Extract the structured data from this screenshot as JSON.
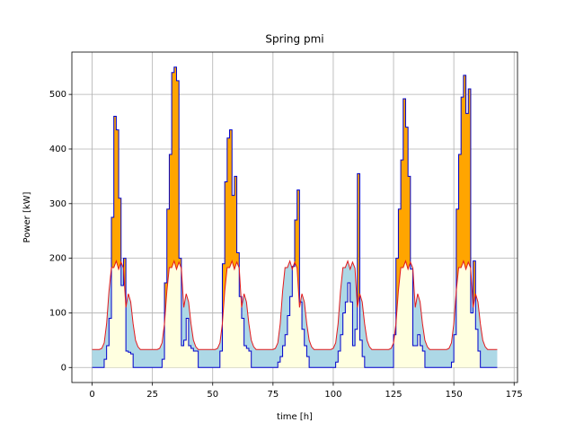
{
  "chart_data": {
    "type": "step_fill",
    "title": "Spring pmi",
    "x_label": "time [h]",
    "y_label": "Power [kW]",
    "x": [
      0,
      1,
      2,
      3,
      4,
      5,
      6,
      7,
      8,
      9,
      10,
      11,
      12,
      13,
      14,
      15,
      16,
      17,
      18,
      19,
      20,
      21,
      22,
      23,
      24,
      25,
      26,
      27,
      28,
      29,
      30,
      31,
      32,
      33,
      34,
      35,
      36,
      37,
      38,
      39,
      40,
      41,
      42,
      43,
      44,
      45,
      46,
      47,
      48,
      49,
      50,
      51,
      52,
      53,
      54,
      55,
      56,
      57,
      58,
      59,
      60,
      61,
      62,
      63,
      64,
      65,
      66,
      67,
      68,
      69,
      70,
      71,
      72,
      73,
      74,
      75,
      76,
      77,
      78,
      79,
      80,
      81,
      82,
      83,
      84,
      85,
      86,
      87,
      88,
      89,
      90,
      91,
      92,
      93,
      94,
      95,
      96,
      97,
      98,
      99,
      100,
      101,
      102,
      103,
      104,
      105,
      106,
      107,
      108,
      109,
      110,
      111,
      112,
      113,
      114,
      115,
      116,
      117,
      118,
      119,
      120,
      121,
      122,
      123,
      124,
      125,
      126,
      127,
      128,
      129,
      130,
      131,
      132,
      133,
      134,
      135,
      136,
      137,
      138,
      139,
      140,
      141,
      142,
      143,
      144,
      145,
      146,
      147,
      148,
      149,
      150,
      151,
      152,
      153,
      154,
      155,
      156,
      157,
      158,
      159,
      160,
      161,
      162,
      163,
      164,
      165,
      166,
      167,
      168
    ],
    "series": [
      {
        "color": "#0000cd",
        "step": "post",
        "fill_above": "#ffa500",
        "fill_below": "#ffffe0",
        "values": [
          0,
          0,
          0,
          0,
          0,
          15,
          40,
          90,
          275,
          460,
          435,
          310,
          150,
          200,
          30,
          28,
          25,
          0,
          0,
          0,
          0,
          0,
          0,
          0,
          0,
          0,
          0,
          0,
          0,
          15,
          155,
          290,
          390,
          540,
          550,
          525,
          200,
          40,
          50,
          90,
          40,
          35,
          30,
          30,
          0,
          0,
          0,
          0,
          0,
          0,
          0,
          0,
          0,
          30,
          190,
          340,
          420,
          435,
          315,
          350,
          210,
          130,
          90,
          40,
          35,
          30,
          0,
          0,
          0,
          0,
          0,
          0,
          0,
          0,
          0,
          0,
          0,
          10,
          20,
          40,
          60,
          95,
          130,
          185,
          270,
          325,
          120,
          70,
          40,
          20,
          0,
          0,
          0,
          0,
          0,
          0,
          0,
          0,
          0,
          0,
          0,
          10,
          30,
          60,
          100,
          120,
          155,
          120,
          40,
          70,
          355,
          50,
          20,
          0,
          0,
          0,
          0,
          0,
          0,
          0,
          0,
          0,
          0,
          0,
          0,
          60,
          200,
          290,
          380,
          492,
          440,
          350,
          180,
          40,
          40,
          60,
          40,
          30,
          0,
          0,
          0,
          0,
          0,
          0,
          0,
          0,
          0,
          0,
          0,
          10,
          60,
          290,
          390,
          495,
          535,
          465,
          510,
          100,
          195,
          70,
          30,
          0,
          0,
          0,
          0,
          0,
          0,
          0,
          0
        ]
      },
      {
        "color": "#e31a1c",
        "fill_below": "#add8e6",
        "values": [
          33,
          33,
          33,
          33,
          35,
          45,
          80,
          140,
          183,
          183,
          195,
          180,
          193,
          182,
          110,
          135,
          120,
          80,
          50,
          38,
          33,
          33,
          33,
          33,
          33,
          33,
          33,
          33,
          35,
          45,
          80,
          140,
          183,
          183,
          195,
          180,
          193,
          182,
          110,
          135,
          120,
          80,
          50,
          38,
          33,
          33,
          33,
          33,
          33,
          33,
          33,
          33,
          35,
          45,
          80,
          140,
          183,
          183,
          195,
          180,
          193,
          182,
          110,
          135,
          120,
          80,
          50,
          38,
          33,
          33,
          33,
          33,
          33,
          33,
          33,
          33,
          35,
          45,
          80,
          140,
          183,
          183,
          195,
          180,
          193,
          182,
          110,
          135,
          120,
          80,
          50,
          38,
          33,
          33,
          33,
          33,
          33,
          33,
          33,
          33,
          35,
          45,
          80,
          140,
          183,
          183,
          195,
          180,
          193,
          182,
          110,
          135,
          120,
          80,
          50,
          38,
          33,
          33,
          33,
          33,
          33,
          33,
          33,
          33,
          35,
          45,
          80,
          140,
          183,
          183,
          195,
          180,
          193,
          182,
          110,
          135,
          120,
          80,
          50,
          38,
          33,
          33,
          33,
          33,
          33,
          33,
          33,
          33,
          35,
          45,
          80,
          140,
          183,
          183,
          195,
          180,
          193,
          182,
          110,
          135,
          120,
          80,
          50,
          38,
          33,
          33,
          33,
          33,
          33
        ]
      }
    ],
    "xlim": [
      -8.4,
      176.4
    ],
    "xticks": [
      0,
      25,
      50,
      75,
      100,
      125,
      150,
      175
    ],
    "ylim": [
      -27.5,
      577.5
    ],
    "yticks": [
      0,
      100,
      200,
      300,
      400,
      500
    ],
    "grid": true
  }
}
